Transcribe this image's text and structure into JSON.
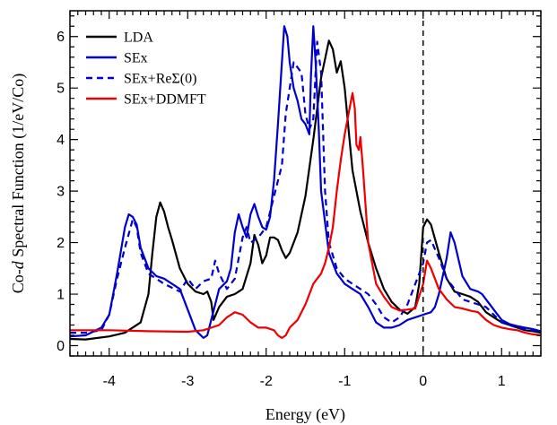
{
  "chart_data": {
    "type": "line",
    "title": "",
    "xlabel": "Energy (eV)",
    "ylabel_prefix": "Co-",
    "ylabel_italic": "d",
    "ylabel_suffix": " Spectral Function (1/eV/Co)",
    "xlim": [
      -4.5,
      1.5
    ],
    "ylim": [
      -0.2,
      6.5
    ],
    "xticks": [
      -4,
      -3,
      -2,
      -1,
      0,
      1
    ],
    "yticks": [
      0,
      1,
      2,
      3,
      4,
      5,
      6
    ],
    "grid": false,
    "legend_position": "top-left",
    "vline": 0,
    "series": [
      {
        "name": "LDA",
        "color": "#000000",
        "dash": false,
        "points": [
          [
            -4.5,
            0.13
          ],
          [
            -4.3,
            0.12
          ],
          [
            -4.0,
            0.18
          ],
          [
            -3.8,
            0.25
          ],
          [
            -3.6,
            0.45
          ],
          [
            -3.5,
            1.0
          ],
          [
            -3.45,
            1.8
          ],
          [
            -3.4,
            2.5
          ],
          [
            -3.35,
            2.78
          ],
          [
            -3.3,
            2.6
          ],
          [
            -3.25,
            2.3
          ],
          [
            -3.2,
            2.05
          ],
          [
            -3.1,
            1.5
          ],
          [
            -3.0,
            1.2
          ],
          [
            -2.9,
            1.05
          ],
          [
            -2.8,
            1.0
          ],
          [
            -2.75,
            1.05
          ],
          [
            -2.7,
            0.85
          ],
          [
            -2.67,
            0.5
          ],
          [
            -2.6,
            0.75
          ],
          [
            -2.5,
            0.95
          ],
          [
            -2.4,
            1.0
          ],
          [
            -2.3,
            1.1
          ],
          [
            -2.2,
            1.6
          ],
          [
            -2.15,
            2.15
          ],
          [
            -2.1,
            1.95
          ],
          [
            -2.05,
            1.6
          ],
          [
            -2.0,
            1.75
          ],
          [
            -1.95,
            2.1
          ],
          [
            -1.9,
            2.1
          ],
          [
            -1.85,
            2.05
          ],
          [
            -1.8,
            1.85
          ],
          [
            -1.75,
            1.7
          ],
          [
            -1.7,
            1.8
          ],
          [
            -1.6,
            2.2
          ],
          [
            -1.5,
            2.9
          ],
          [
            -1.4,
            4.0
          ],
          [
            -1.3,
            5.2
          ],
          [
            -1.2,
            5.92
          ],
          [
            -1.15,
            5.75
          ],
          [
            -1.1,
            5.3
          ],
          [
            -1.05,
            5.52
          ],
          [
            -1.0,
            5.0
          ],
          [
            -0.95,
            4.2
          ],
          [
            -0.9,
            3.4
          ],
          [
            -0.8,
            2.6
          ],
          [
            -0.7,
            2.0
          ],
          [
            -0.6,
            1.5
          ],
          [
            -0.5,
            1.1
          ],
          [
            -0.4,
            0.85
          ],
          [
            -0.3,
            0.7
          ],
          [
            -0.2,
            0.62
          ],
          [
            -0.1,
            0.75
          ],
          [
            -0.05,
            1.2
          ],
          [
            0.0,
            2.3
          ],
          [
            0.05,
            2.45
          ],
          [
            0.1,
            2.35
          ],
          [
            0.2,
            1.8
          ],
          [
            0.3,
            1.3
          ],
          [
            0.4,
            1.05
          ],
          [
            0.5,
            1.0
          ],
          [
            0.6,
            0.95
          ],
          [
            0.7,
            0.85
          ],
          [
            0.8,
            0.65
          ],
          [
            0.9,
            0.55
          ],
          [
            1.0,
            0.45
          ],
          [
            1.1,
            0.4
          ],
          [
            1.2,
            0.35
          ],
          [
            1.3,
            0.3
          ],
          [
            1.4,
            0.28
          ],
          [
            1.5,
            0.25
          ]
        ]
      },
      {
        "name": "SEx",
        "color": "#0000cc",
        "dash": false,
        "points": [
          [
            -4.5,
            0.18
          ],
          [
            -4.3,
            0.2
          ],
          [
            -4.1,
            0.35
          ],
          [
            -4.0,
            0.6
          ],
          [
            -3.9,
            1.4
          ],
          [
            -3.8,
            2.3
          ],
          [
            -3.75,
            2.55
          ],
          [
            -3.7,
            2.5
          ],
          [
            -3.65,
            2.35
          ],
          [
            -3.6,
            1.9
          ],
          [
            -3.5,
            1.5
          ],
          [
            -3.4,
            1.35
          ],
          [
            -3.3,
            1.3
          ],
          [
            -3.2,
            1.2
          ],
          [
            -3.1,
            1.1
          ],
          [
            -3.0,
            0.7
          ],
          [
            -2.9,
            0.3
          ],
          [
            -2.8,
            0.15
          ],
          [
            -2.75,
            0.2
          ],
          [
            -2.7,
            0.5
          ],
          [
            -2.6,
            1.1
          ],
          [
            -2.5,
            1.25
          ],
          [
            -2.45,
            1.5
          ],
          [
            -2.4,
            2.2
          ],
          [
            -2.35,
            2.55
          ],
          [
            -2.3,
            2.3
          ],
          [
            -2.25,
            2.1
          ],
          [
            -2.2,
            2.55
          ],
          [
            -2.15,
            2.75
          ],
          [
            -2.1,
            2.5
          ],
          [
            -2.05,
            2.3
          ],
          [
            -2.0,
            2.25
          ],
          [
            -1.95,
            2.5
          ],
          [
            -1.9,
            3.2
          ],
          [
            -1.85,
            4.3
          ],
          [
            -1.8,
            5.5
          ],
          [
            -1.77,
            6.2
          ],
          [
            -1.73,
            6.0
          ],
          [
            -1.7,
            5.5
          ],
          [
            -1.65,
            5.0
          ],
          [
            -1.6,
            4.75
          ],
          [
            -1.55,
            4.4
          ],
          [
            -1.5,
            4.3
          ],
          [
            -1.45,
            4.1
          ],
          [
            -1.43,
            5.2
          ],
          [
            -1.4,
            6.2
          ],
          [
            -1.37,
            5.5
          ],
          [
            -1.33,
            4.2
          ],
          [
            -1.3,
            3.0
          ],
          [
            -1.2,
            1.8
          ],
          [
            -1.1,
            1.4
          ],
          [
            -1.0,
            1.2
          ],
          [
            -0.9,
            1.1
          ],
          [
            -0.8,
            1.0
          ],
          [
            -0.7,
            0.75
          ],
          [
            -0.6,
            0.45
          ],
          [
            -0.5,
            0.35
          ],
          [
            -0.4,
            0.35
          ],
          [
            -0.3,
            0.4
          ],
          [
            -0.2,
            0.5
          ],
          [
            -0.1,
            0.55
          ],
          [
            0.0,
            0.6
          ],
          [
            0.1,
            0.65
          ],
          [
            0.15,
            0.75
          ],
          [
            0.2,
            1.0
          ],
          [
            0.3,
            1.7
          ],
          [
            0.35,
            2.2
          ],
          [
            0.4,
            2.0
          ],
          [
            0.5,
            1.35
          ],
          [
            0.6,
            1.1
          ],
          [
            0.7,
            1.05
          ],
          [
            0.75,
            1.0
          ],
          [
            0.8,
            0.9
          ],
          [
            0.9,
            0.7
          ],
          [
            1.0,
            0.5
          ],
          [
            1.1,
            0.42
          ],
          [
            1.2,
            0.38
          ],
          [
            1.3,
            0.35
          ],
          [
            1.4,
            0.32
          ],
          [
            1.5,
            0.28
          ]
        ]
      },
      {
        "name": "SEx+ReΣ(0)",
        "color": "#0000cc",
        "dash": true,
        "points": [
          [
            -4.5,
            0.25
          ],
          [
            -4.3,
            0.25
          ],
          [
            -4.1,
            0.3
          ],
          [
            -4.0,
            0.6
          ],
          [
            -3.9,
            1.3
          ],
          [
            -3.8,
            1.9
          ],
          [
            -3.7,
            2.45
          ],
          [
            -3.65,
            2.3
          ],
          [
            -3.6,
            1.8
          ],
          [
            -3.5,
            1.4
          ],
          [
            -3.3,
            1.2
          ],
          [
            -3.1,
            1.05
          ],
          [
            -3.0,
            1.3
          ],
          [
            -2.9,
            1.1
          ],
          [
            -2.8,
            1.25
          ],
          [
            -2.7,
            1.3
          ],
          [
            -2.65,
            1.65
          ],
          [
            -2.6,
            1.4
          ],
          [
            -2.5,
            1.1
          ],
          [
            -2.4,
            1.3
          ],
          [
            -2.3,
            2.1
          ],
          [
            -2.25,
            2.3
          ],
          [
            -2.2,
            2.0
          ],
          [
            -2.1,
            2.1
          ],
          [
            -2.0,
            2.3
          ],
          [
            -1.9,
            2.9
          ],
          [
            -1.8,
            3.5
          ],
          [
            -1.75,
            4.5
          ],
          [
            -1.65,
            5.5
          ],
          [
            -1.55,
            5.3
          ],
          [
            -1.5,
            4.5
          ],
          [
            -1.45,
            4.2
          ],
          [
            -1.4,
            4.4
          ],
          [
            -1.35,
            5.9
          ],
          [
            -1.3,
            5.3
          ],
          [
            -1.25,
            3.0
          ],
          [
            -1.2,
            2.0
          ],
          [
            -1.1,
            1.5
          ],
          [
            -1.0,
            1.3
          ],
          [
            -0.9,
            1.2
          ],
          [
            -0.8,
            1.1
          ],
          [
            -0.7,
            1.0
          ],
          [
            -0.6,
            0.8
          ],
          [
            -0.5,
            0.55
          ],
          [
            -0.4,
            0.45
          ],
          [
            -0.3,
            0.55
          ],
          [
            -0.2,
            0.8
          ],
          [
            -0.1,
            1.2
          ],
          [
            0.0,
            1.6
          ],
          [
            0.05,
            2.0
          ],
          [
            0.1,
            2.05
          ],
          [
            0.2,
            1.7
          ],
          [
            0.3,
            1.3
          ],
          [
            0.4,
            1.1
          ],
          [
            0.5,
            0.9
          ],
          [
            0.6,
            0.85
          ],
          [
            0.7,
            0.8
          ],
          [
            0.8,
            0.75
          ],
          [
            0.9,
            0.6
          ],
          [
            1.0,
            0.45
          ],
          [
            1.1,
            0.4
          ],
          [
            1.2,
            0.35
          ],
          [
            1.3,
            0.32
          ],
          [
            1.4,
            0.3
          ],
          [
            1.5,
            0.28
          ]
        ]
      },
      {
        "name": "SEx+DDMFT",
        "color": "#ee0000",
        "dash": false,
        "points": [
          [
            -4.5,
            0.3
          ],
          [
            -4.0,
            0.3
          ],
          [
            -3.5,
            0.28
          ],
          [
            -3.0,
            0.27
          ],
          [
            -2.8,
            0.3
          ],
          [
            -2.6,
            0.4
          ],
          [
            -2.5,
            0.55
          ],
          [
            -2.4,
            0.65
          ],
          [
            -2.3,
            0.6
          ],
          [
            -2.2,
            0.45
          ],
          [
            -2.1,
            0.35
          ],
          [
            -2.0,
            0.35
          ],
          [
            -1.9,
            0.3
          ],
          [
            -1.85,
            0.2
          ],
          [
            -1.8,
            0.15
          ],
          [
            -1.75,
            0.2
          ],
          [
            -1.7,
            0.35
          ],
          [
            -1.6,
            0.5
          ],
          [
            -1.5,
            0.8
          ],
          [
            -1.4,
            1.2
          ],
          [
            -1.3,
            1.4
          ],
          [
            -1.25,
            1.6
          ],
          [
            -1.2,
            1.9
          ],
          [
            -1.15,
            2.3
          ],
          [
            -1.1,
            3.0
          ],
          [
            -1.05,
            3.6
          ],
          [
            -1.0,
            4.1
          ],
          [
            -0.95,
            4.5
          ],
          [
            -0.9,
            4.9
          ],
          [
            -0.87,
            4.6
          ],
          [
            -0.85,
            3.9
          ],
          [
            -0.82,
            3.8
          ],
          [
            -0.8,
            4.05
          ],
          [
            -0.77,
            3.5
          ],
          [
            -0.7,
            2.0
          ],
          [
            -0.6,
            1.2
          ],
          [
            -0.5,
            0.95
          ],
          [
            -0.4,
            0.75
          ],
          [
            -0.3,
            0.68
          ],
          [
            -0.2,
            0.7
          ],
          [
            -0.1,
            0.72
          ],
          [
            0.0,
            1.2
          ],
          [
            0.05,
            1.65
          ],
          [
            0.1,
            1.5
          ],
          [
            0.2,
            1.1
          ],
          [
            0.3,
            0.9
          ],
          [
            0.4,
            0.75
          ],
          [
            0.5,
            0.72
          ],
          [
            0.6,
            0.68
          ],
          [
            0.7,
            0.65
          ],
          [
            0.8,
            0.5
          ],
          [
            0.9,
            0.4
          ],
          [
            1.0,
            0.35
          ],
          [
            1.1,
            0.32
          ],
          [
            1.2,
            0.3
          ],
          [
            1.3,
            0.25
          ],
          [
            1.4,
            0.22
          ],
          [
            1.5,
            0.2
          ]
        ]
      }
    ]
  }
}
